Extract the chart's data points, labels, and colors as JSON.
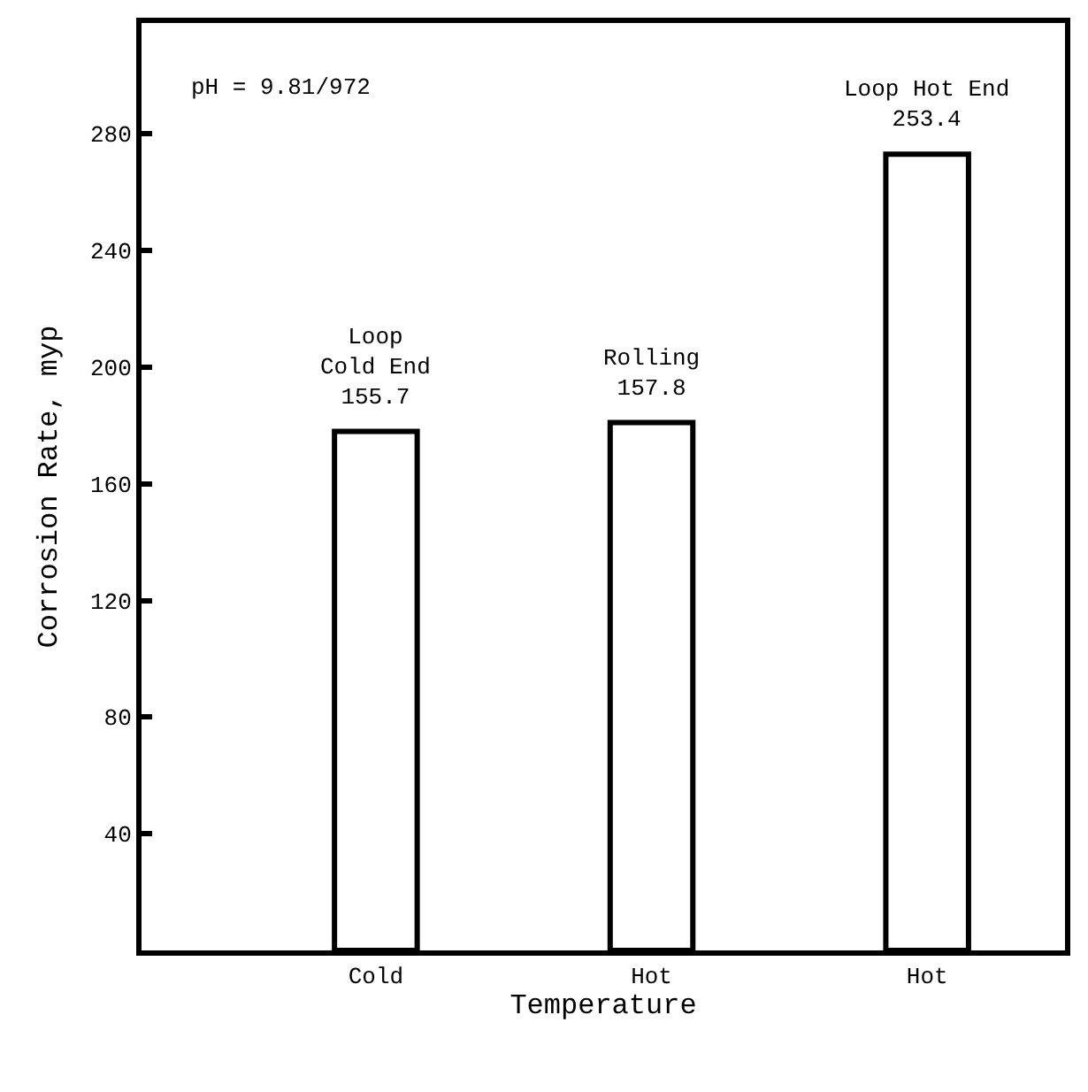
{
  "chart_data": {
    "type": "bar",
    "xlabel": "Temperature",
    "ylabel": "Corrosion Rate, myp",
    "categories": [
      "Cold",
      "Hot",
      "Hot"
    ],
    "values": [
      178,
      181,
      273
    ],
    "color": "#ffffff",
    "ylim": [
      0,
      318
    ],
    "yticks": [
      40,
      80,
      120,
      160,
      200,
      240,
      280
    ],
    "annotations": [
      "pH = 9.81/972",
      {
        "text": "Loop\nCold End\n155.7",
        "x": "Cold",
        "y": 178
      },
      {
        "text": "Rolling\n157.8",
        "x": "Hot",
        "y": 181
      },
      "Loop Hot End\n253.4"
    ]
  }
}
